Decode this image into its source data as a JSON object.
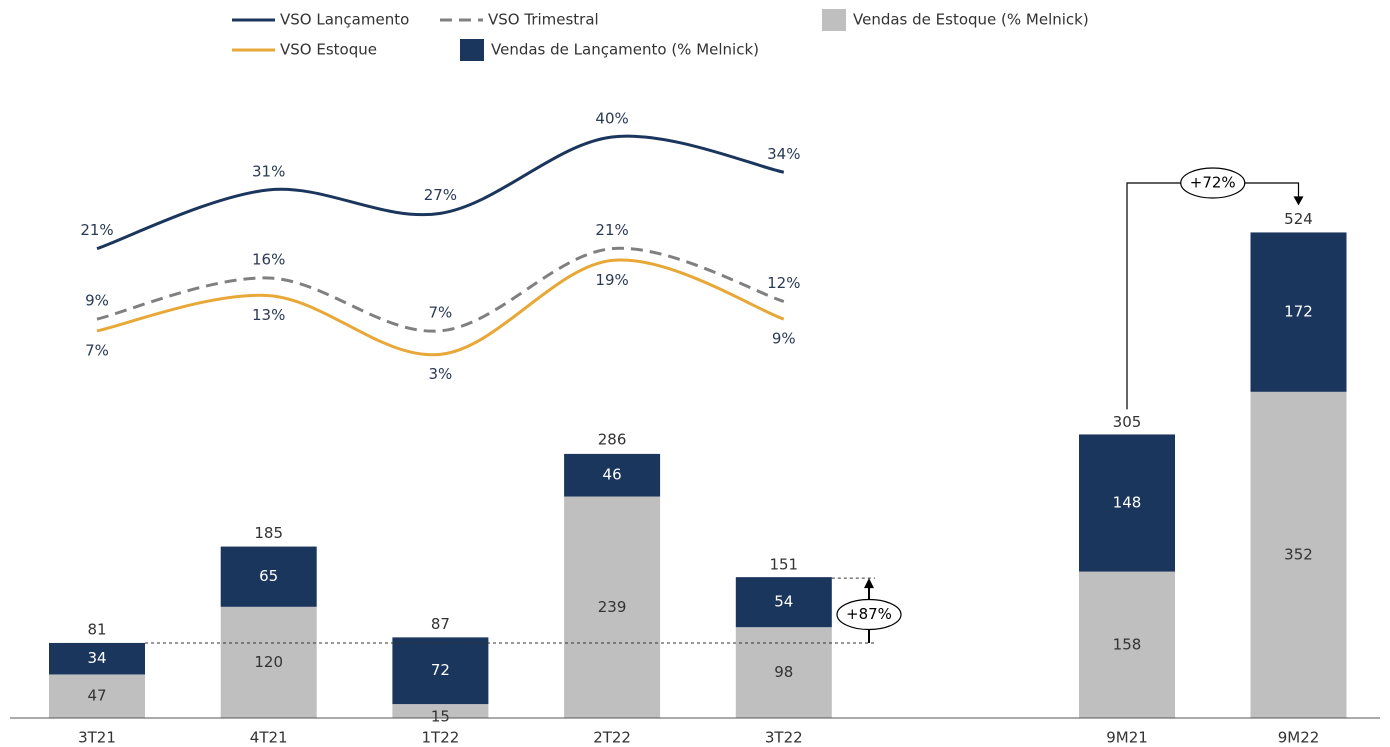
{
  "chart_data": [
    {
      "type": "line",
      "ylim": [
        0,
        40
      ],
      "series": [
        {
          "name": "VSO Lançamento",
          "color": "#1b365d",
          "style": "solid",
          "values": [
            21,
            31,
            27,
            40,
            34
          ],
          "value_labels": [
            "21%",
            "31%",
            "27%",
            "40%",
            "34%"
          ]
        },
        {
          "name": "VSO Trimestral",
          "color": "#808080",
          "style": "dashed",
          "values": [
            9,
            16,
            7,
            21,
            12
          ],
          "value_labels": [
            "9%",
            "16%",
            "7%",
            "21%",
            "12%"
          ]
        },
        {
          "name": "VSO Estoque",
          "color": "#e8a838",
          "style": "solid",
          "values": [
            7,
            13,
            3,
            19,
            9
          ],
          "value_labels": [
            "7%",
            "13%",
            "3%",
            "19%",
            "9%"
          ]
        }
      ]
    },
    {
      "type": "bar",
      "stacked": true,
      "categories": [
        "3T21",
        "4T21",
        "1T22",
        "2T22",
        "3T22",
        "9M21",
        "9M22"
      ],
      "ylim": [
        0,
        600
      ],
      "series": [
        {
          "name": "Vendas de Estoque (% Melnick)",
          "color": "#bfbfbf",
          "values": [
            47,
            120,
            15,
            239,
            98,
            158,
            352
          ]
        },
        {
          "name": "Vendas de Lançamento (% Melnick)",
          "color": "#1b365d",
          "values": [
            34,
            65,
            72,
            46,
            54,
            148,
            172
          ]
        }
      ],
      "totals": [
        81,
        185,
        87,
        286,
        151,
        305,
        524
      ],
      "annotations": [
        "+87%",
        "+72%"
      ]
    }
  ]
}
